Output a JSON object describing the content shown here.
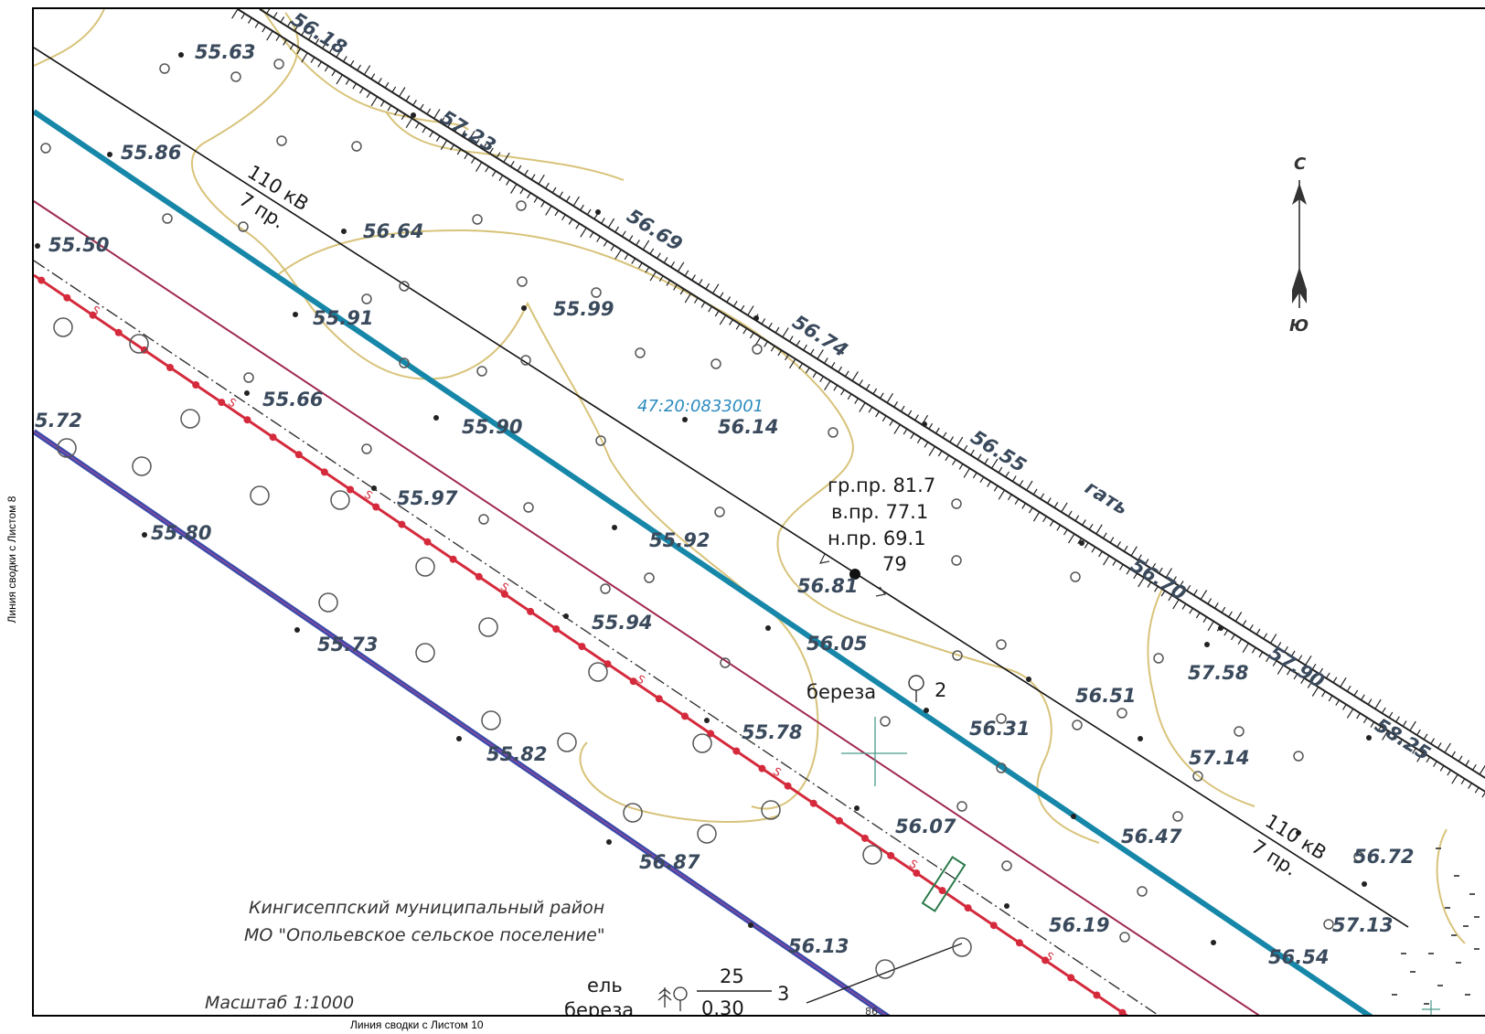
{
  "frame": {
    "left_label": "Линия сводки с Листом 8",
    "bottom_label": "Линия сводки с Листом 10"
  },
  "north_arrow": {
    "north": "С",
    "south": "Ю"
  },
  "power_line": {
    "voltage": "110 кВ",
    "span": "7 пр."
  },
  "pole_info": {
    "gr": "гр.пр. 81.7",
    "v": "в.пр. 77.1",
    "n": "н.пр. 69.1",
    "number": "79",
    "elevation": "56.81"
  },
  "road_label": "гать",
  "road_elevations": [
    "56.18",
    "57.23",
    "56.69",
    "56.74",
    "56.55",
    "56.70",
    "57.90",
    "58.25"
  ],
  "elevations": {
    "e1": "55.63",
    "e2": "55.86",
    "e3": "55.50",
    "e4": "56.64",
    "e5": "55.91",
    "e6": "55.99",
    "e7": "55.66",
    "e8": "5.72",
    "e9": "55.90",
    "e10": "56.14",
    "e11": "55.97",
    "e12": "55.80",
    "e13": "55.92",
    "e14": "55.94",
    "e15": "55.73",
    "e16": "56.05",
    "e17": "56.51",
    "e18": "57.58",
    "e19": "56.31",
    "e20": "55.78",
    "e21": "57.14",
    "e22": "55.82",
    "e23": "56.07",
    "e24": "56.47",
    "e25": "56.72",
    "e26": "56.87",
    "e27": "56.19",
    "e28": "57.13",
    "e29": "56.13",
    "e30": "56.54"
  },
  "cadastral_number": "47:20:0833001",
  "tree_birch": {
    "name": "береза",
    "count": "2"
  },
  "tree_group": {
    "spruce": "ель",
    "birch": "береза",
    "height": "25",
    "diameter": "0.30",
    "count": "3"
  },
  "district": {
    "line1": "Кингисеппский муниципальный район",
    "line2": "МО \"Опольевское сельское поселение\""
  },
  "scale": "Масштаб 1:1000",
  "small_number": "86",
  "colors": {
    "power_line_blue": "#1687a8",
    "red_line": "#d42a3c",
    "purple_line": "#a0284f",
    "navy_line": "#3a4aa8",
    "contour": "#d8c37a",
    "cadastral": "#2a8bbf",
    "marker_green": "#2b7a4b"
  }
}
